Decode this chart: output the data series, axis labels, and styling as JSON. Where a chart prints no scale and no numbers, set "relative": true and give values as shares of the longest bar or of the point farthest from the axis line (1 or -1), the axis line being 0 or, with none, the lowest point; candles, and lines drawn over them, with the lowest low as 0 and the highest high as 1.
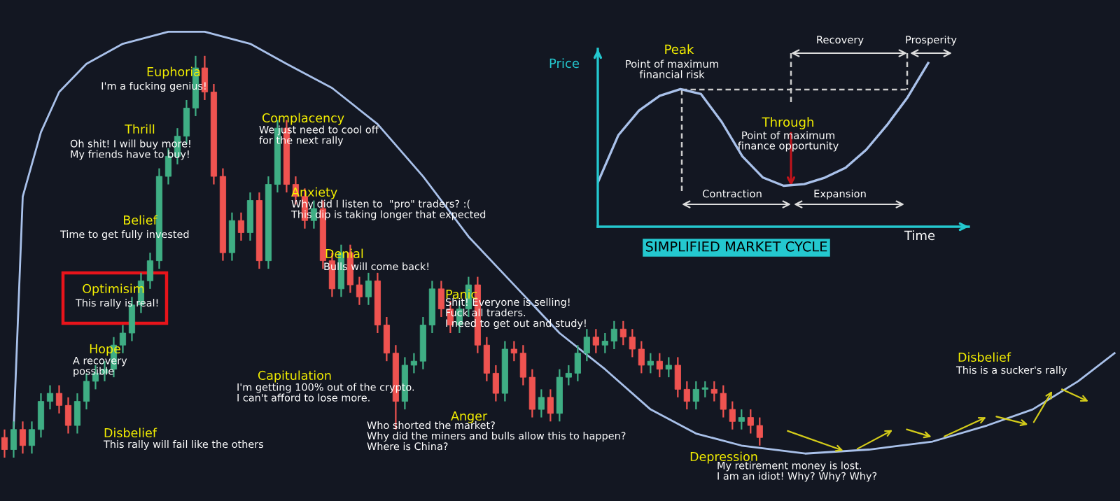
{
  "chart_data": [
    {
      "type": "candlestick",
      "relative": true,
      "categories": [
        null,
        null,
        null,
        null,
        null,
        null,
        null,
        null,
        null,
        null,
        null,
        null,
        null,
        null,
        null,
        null,
        null,
        null,
        null,
        null,
        null,
        null,
        null,
        null,
        null,
        null,
        null,
        null,
        null,
        null,
        null,
        null,
        null,
        null,
        null,
        null,
        null,
        null,
        null,
        null,
        null,
        null,
        null,
        null,
        null,
        null,
        null,
        null,
        null,
        null,
        null,
        null,
        null,
        null,
        null,
        null,
        null,
        null,
        null,
        null,
        null,
        null,
        null,
        null,
        null,
        null,
        null,
        null,
        null,
        null,
        null,
        null,
        null,
        null,
        null,
        null,
        null,
        null,
        null,
        null,
        null,
        null,
        null,
        null,
        null,
        null,
        null,
        null,
        null,
        null,
        null,
        null,
        null,
        null,
        null,
        null,
        null,
        null,
        null,
        null,
        null,
        null,
        null,
        null,
        null,
        null,
        null,
        null,
        null,
        null,
        null,
        null,
        null,
        null,
        null,
        null,
        null,
        null,
        null,
        null,
        null,
        null,
        null
      ],
      "series": [
        {
          "type": "candlestick",
          "ohlc": [
            [
              0.05,
              0.07,
              0.0,
              0.02
            ],
            [
              0.02,
              0.09,
              0.0,
              0.07
            ],
            [
              0.07,
              0.09,
              0.01,
              0.03
            ],
            [
              0.03,
              0.09,
              0.01,
              0.07
            ],
            [
              0.07,
              0.16,
              0.05,
              0.14
            ],
            [
              0.14,
              0.18,
              0.12,
              0.16
            ],
            [
              0.16,
              0.18,
              0.11,
              0.13
            ],
            [
              0.13,
              0.15,
              0.06,
              0.08
            ],
            [
              0.08,
              0.16,
              0.06,
              0.14
            ],
            [
              0.14,
              0.21,
              0.12,
              0.19
            ],
            [
              0.19,
              0.23,
              0.17,
              0.21
            ],
            [
              0.21,
              0.24,
              0.19,
              0.22
            ],
            [
              0.22,
              0.3,
              0.2,
              0.28
            ],
            [
              0.28,
              0.33,
              0.26,
              0.31
            ],
            [
              0.31,
              0.4,
              0.29,
              0.38
            ],
            [
              0.38,
              0.46,
              0.36,
              0.44
            ],
            [
              0.44,
              0.51,
              0.42,
              0.49
            ],
            [
              0.49,
              0.72,
              0.47,
              0.7
            ],
            [
              0.7,
              0.77,
              0.68,
              0.75
            ],
            [
              0.75,
              0.82,
              0.73,
              0.8
            ],
            [
              0.8,
              0.89,
              0.78,
              0.87
            ],
            [
              0.87,
              1.0,
              0.85,
              0.97
            ],
            [
              0.97,
              1.0,
              0.89,
              0.91
            ],
            [
              0.91,
              0.93,
              0.68,
              0.7
            ],
            [
              0.7,
              0.72,
              0.49,
              0.51
            ],
            [
              0.51,
              0.61,
              0.49,
              0.59
            ],
            [
              0.59,
              0.61,
              0.54,
              0.56
            ],
            [
              0.56,
              0.66,
              0.54,
              0.64
            ],
            [
              0.64,
              0.66,
              0.47,
              0.49
            ],
            [
              0.49,
              0.7,
              0.47,
              0.68
            ],
            [
              0.68,
              0.84,
              0.66,
              0.82
            ],
            [
              0.82,
              0.84,
              0.66,
              0.68
            ],
            [
              0.68,
              0.7,
              0.63,
              0.65
            ],
            [
              0.65,
              0.67,
              0.57,
              0.59
            ],
            [
              0.59,
              0.64,
              0.57,
              0.62
            ],
            [
              0.62,
              0.64,
              0.47,
              0.49
            ],
            [
              0.49,
              0.51,
              0.4,
              0.42
            ],
            [
              0.42,
              0.53,
              0.4,
              0.51
            ],
            [
              0.51,
              0.53,
              0.41,
              0.43
            ],
            [
              0.43,
              0.45,
              0.38,
              0.4
            ],
            [
              0.4,
              0.46,
              0.38,
              0.44
            ],
            [
              0.44,
              0.46,
              0.31,
              0.33
            ],
            [
              0.33,
              0.35,
              0.24,
              0.26
            ],
            [
              0.26,
              0.28,
              0.07,
              0.14
            ],
            [
              0.14,
              0.25,
              0.12,
              0.23
            ],
            [
              0.23,
              0.26,
              0.21,
              0.24
            ],
            [
              0.24,
              0.35,
              0.22,
              0.33
            ],
            [
              0.33,
              0.44,
              0.31,
              0.42
            ],
            [
              0.42,
              0.44,
              0.35,
              0.37
            ],
            [
              0.37,
              0.39,
              0.31,
              0.33
            ],
            [
              0.33,
              0.39,
              0.31,
              0.37
            ],
            [
              0.37,
              0.45,
              0.35,
              0.43
            ],
            [
              0.43,
              0.45,
              0.26,
              0.28
            ],
            [
              0.28,
              0.3,
              0.19,
              0.21
            ],
            [
              0.21,
              0.23,
              0.14,
              0.16
            ],
            [
              0.16,
              0.29,
              0.14,
              0.27
            ],
            [
              0.27,
              0.29,
              0.24,
              0.26
            ],
            [
              0.26,
              0.28,
              0.18,
              0.2
            ],
            [
              0.2,
              0.22,
              0.1,
              0.12
            ],
            [
              0.12,
              0.17,
              0.1,
              0.15
            ],
            [
              0.15,
              0.17,
              0.09,
              0.11
            ],
            [
              0.11,
              0.22,
              0.09,
              0.2
            ],
            [
              0.2,
              0.23,
              0.18,
              0.21
            ],
            [
              0.21,
              0.28,
              0.19,
              0.26
            ],
            [
              0.26,
              0.32,
              0.24,
              0.3
            ],
            [
              0.3,
              0.32,
              0.26,
              0.28
            ],
            [
              0.28,
              0.31,
              0.26,
              0.29
            ],
            [
              0.29,
              0.34,
              0.27,
              0.32
            ],
            [
              0.32,
              0.34,
              0.28,
              0.3
            ],
            [
              0.3,
              0.32,
              0.25,
              0.27
            ],
            [
              0.27,
              0.29,
              0.21,
              0.23
            ],
            [
              0.23,
              0.26,
              0.21,
              0.24
            ],
            [
              0.24,
              0.26,
              0.2,
              0.22
            ],
            [
              0.22,
              0.25,
              0.2,
              0.23
            ],
            [
              0.23,
              0.25,
              0.15,
              0.17
            ],
            [
              0.17,
              0.19,
              0.12,
              0.14
            ],
            [
              0.14,
              0.19,
              0.12,
              0.17
            ],
            [
              0.17,
              0.19,
              0.15,
              0.17
            ],
            [
              0.17,
              0.19,
              0.14,
              0.16
            ],
            [
              0.16,
              0.18,
              0.1,
              0.12
            ],
            [
              0.12,
              0.14,
              0.07,
              0.09
            ],
            [
              0.09,
              0.12,
              0.07,
              0.1
            ],
            [
              0.1,
              0.12,
              0.06,
              0.08
            ],
            [
              0.08,
              0.1,
              0.03,
              0.05
            ],
            null,
            null,
            null,
            null,
            null,
            null,
            null,
            null,
            null,
            null,
            null,
            null,
            null,
            null,
            null,
            null,
            null,
            null,
            null,
            null,
            null,
            null,
            null,
            null,
            null,
            null,
            null,
            null,
            null,
            null,
            null,
            null,
            null,
            null,
            null,
            null,
            null,
            null,
            null
          ]
        },
        {
          "type": "line",
          "color": "#a9c1ea",
          "values": [
            null,
            0.07,
            0.65,
            null,
            0.81,
            null,
            0.91,
            null,
            null,
            0.98,
            null,
            null,
            null,
            1.03,
            null,
            null,
            null,
            null,
            1.06,
            null,
            null,
            null,
            1.06,
            null,
            null,
            null,
            null,
            1.03,
            null,
            null,
            null,
            0.98,
            null,
            null,
            null,
            null,
            0.92,
            null,
            null,
            null,
            null,
            0.83,
            null,
            null,
            null,
            null,
            0.7,
            null,
            null,
            null,
            null,
            0.55,
            null,
            null,
            null,
            null,
            0.43,
            null,
            null,
            null,
            null,
            0.31,
            null,
            null,
            null,
            null,
            0.22,
            null,
            null,
            null,
            null,
            0.12,
            null,
            null,
            null,
            null,
            0.06,
            null,
            null,
            null,
            null,
            0.03,
            null,
            null,
            null,
            null,
            null,
            null,
            0.01,
            null,
            null,
            null,
            null,
            null,
            null,
            0.02,
            null,
            null,
            null,
            null,
            null,
            null,
            0.04,
            null,
            null,
            null,
            null,
            null,
            0.08,
            null,
            null,
            null,
            null,
            0.12,
            null,
            null,
            null,
            null,
            0.19,
            null,
            null,
            null,
            0.26
          ]
        }
      ],
      "annotations": [
        "Euphoria",
        "I'm a fucking genius!",
        "Thrill",
        "Oh shit! I will buy more!\nMy friends have to buy!",
        "Belief",
        "Time to get fully invested",
        "Optimisim",
        "This rally is real!",
        "Hope",
        "A recovery\npossible",
        "Disbelief",
        "This rally will fail like the others",
        "Complacency",
        "We just need to cool off\nfor the next rally",
        "Anxiety",
        "Why did I listen to  \"pro\" traders? :(\nThis dip is taking longer that expected",
        "Denial",
        "Bulls will come back!",
        "Panic",
        "Shit! Everyone is selling!\nFuck all traders.\nI need to get out and study!",
        "Capitulation",
        "I'm getting 100% out of the crypto.\nI can't afford to lose more.",
        "Anger",
        "Who shorted the market?\nWhy did the miners and bulls allow this to happen?\nWhere is China?",
        "Depression",
        "My retirement money is lost.\nI am an idiot! Why? Why? Why?",
        "Disbelief",
        "This is a sucker's rally"
      ]
    },
    {
      "type": "line",
      "relative": true,
      "title": "SIMPLIFIED MARKET CYCLE",
      "xlabel": "Time",
      "ylabel": "Price",
      "categories": [
        null,
        null,
        null,
        null,
        null,
        null,
        null,
        null,
        null,
        null,
        null,
        null,
        null,
        null,
        null,
        null,
        null
      ],
      "series": [
        {
          "color": "#a9c1ea",
          "values": [
            0.27,
            0.56,
            0.71,
            0.8,
            0.84,
            0.81,
            0.64,
            0.43,
            0.3,
            0.25,
            0.26,
            0.3,
            0.36,
            0.47,
            0.62,
            0.79,
            1.0
          ]
        }
      ],
      "annotations": [
        "Peak",
        "Point of maximum\nfinancial risk",
        "Through",
        "Point of maximum\nfinance opportunity",
        "Contraction",
        "Expansion",
        "Recovery",
        "Prosperity"
      ]
    }
  ]
}
